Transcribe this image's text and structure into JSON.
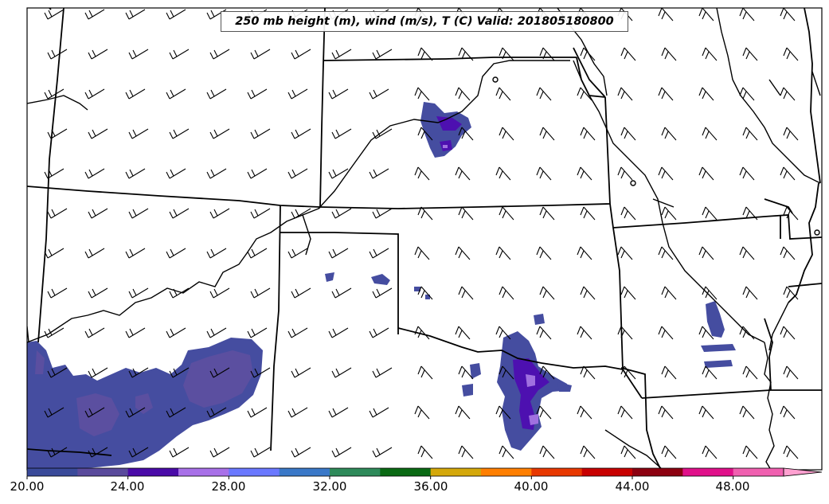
{
  "title": "250 mb height (m), wind (m/s), T (C) Valid: 201805180800",
  "colorbar": {
    "labels": [
      "20.00",
      "24.00",
      "28.00",
      "32.00",
      "36.00",
      "40.00",
      "44.00",
      "48.00"
    ],
    "colors": [
      "#3a4a9a",
      "#5a4a9c",
      "#4a0aa8",
      "#a870e8",
      "#6a78ff",
      "#3a78c8",
      "#2e8a5a",
      "#0a6a14",
      "#d4a80a",
      "#ff7f00",
      "#e83800",
      "#c80000",
      "#8c0010",
      "#e0108a",
      "#f060b0",
      "#ffa0d0"
    ]
  },
  "fill_colors": {
    "low": "#454da0",
    "mid": "#5b4fa0",
    "high": "#4d10b0",
    "peak": "#a070e0"
  }
}
